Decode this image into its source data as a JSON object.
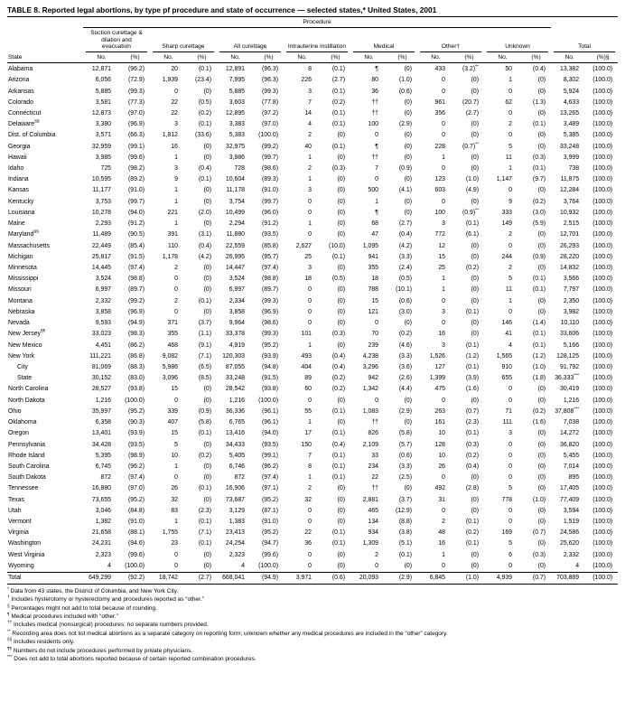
{
  "title": {
    "label": "TABLE 8.",
    "text": "Reported legal abortions, by type pf procedure and state of occurrence — selected states,* United States, 2001"
  },
  "table": {
    "header": {
      "procedure_label": "Procedure",
      "state_label": "State",
      "groups": [
        {
          "name": "Suction curettage & dilation and evacuation",
          "no": "No.",
          "pct": "(%)"
        },
        {
          "name": "Sharp curettage",
          "no": "No.",
          "pct": "(%)"
        },
        {
          "name": "All curettage",
          "no": "No.",
          "pct": "(%)"
        },
        {
          "name": "Intrauterine instillation",
          "no": "No.",
          "pct": "(%)"
        },
        {
          "name": "Medical",
          "no": "No.",
          "pct": "(%)"
        },
        {
          "name": "Other†",
          "no": "No.",
          "pct": "(%)"
        },
        {
          "name": "Unknown",
          "no": "No.",
          "pct": "(%)"
        },
        {
          "name": "Total",
          "no": "No.",
          "pct": "(%)§"
        }
      ]
    },
    "rows": [
      {
        "state": "Alabama",
        "cells": [
          "12,871",
          "(96.2)",
          "20",
          "(0.1)",
          "12,891",
          "(96.3)",
          "8",
          "(0.1)",
          "¶",
          "(0)",
          "433",
          "(3.2)**",
          "50",
          "(0.4)",
          "13,382",
          "(100.0)"
        ]
      },
      {
        "state": "Arizona",
        "cells": [
          "6,056",
          "(72.9)",
          "1,939",
          "(23.4)",
          "7,995",
          "(96.3)",
          "226",
          "(2.7)",
          "80",
          "(1.0)",
          "0",
          "(0)",
          "1",
          "(0)",
          "8,302",
          "(100.0)"
        ]
      },
      {
        "state": "Arkansas",
        "cells": [
          "5,885",
          "(99.3)",
          "0",
          "(0)",
          "5,885",
          "(99.3)",
          "3",
          "(0.1)",
          "36",
          "(0.6)",
          "0",
          "(0)",
          "0",
          "(0)",
          "5,924",
          "(100.0)"
        ]
      },
      {
        "state": "Colorado",
        "cells": [
          "3,581",
          "(77.3)",
          "22",
          "(0.5)",
          "3,603",
          "(77.8)",
          "7",
          "(0.2)",
          "††",
          "(0)",
          "961",
          "(20.7)",
          "62",
          "(1.3)",
          "4,633",
          "(100.0)"
        ]
      },
      {
        "state": "Connecticut",
        "cells": [
          "12,873",
          "(97.0)",
          "22",
          "(0.2)",
          "12,895",
          "(97.2)",
          "14",
          "(0.1)",
          "††",
          "(0)",
          "356",
          "(2.7)",
          "0",
          "(0)",
          "13,265",
          "(100.0)"
        ]
      },
      {
        "state": "Delaware",
        "mark": "§§",
        "cells": [
          "3,380",
          "(96.9)",
          "3",
          "(0.1)",
          "3,383",
          "(97.0)",
          "4",
          "(0.1)",
          "100",
          "(2.9)",
          "0",
          "(0)",
          "2",
          "(0.1)",
          "3,489",
          "(100.0)"
        ]
      },
      {
        "state": "Dist. of Columbia",
        "cells": [
          "3,571",
          "(66.3)",
          "1,812",
          "(33.6)",
          "5,383",
          "(100.0)",
          "2",
          "(0)",
          "0",
          "(0)",
          "0",
          "(0)",
          "0",
          "(0)",
          "5,385",
          "(100.0)"
        ]
      },
      {
        "state": "Georgia",
        "cells": [
          "32,959",
          "(99.1)",
          "16",
          "(0)",
          "32,975",
          "(99.2)",
          "40",
          "(0.1)",
          "¶",
          "(0)",
          "228",
          "(0.7)**",
          "5",
          "(0)",
          "33,248",
          "(100.0)"
        ]
      },
      {
        "state": "Hawaii",
        "cells": [
          "3,985",
          "(99.6)",
          "1",
          "(0)",
          "3,986",
          "(99.7)",
          "1",
          "(0)",
          "††",
          "(0)",
          "1",
          "(0)",
          "11",
          "(0.3)",
          "3,999",
          "(100.0)"
        ]
      },
      {
        "state": "Idaho",
        "cells": [
          "725",
          "(98.2)",
          "3",
          "(0.4)",
          "728",
          "(98.6)",
          "2",
          "(0.3)",
          "7",
          "(0.9)",
          "0",
          "(0)",
          "1",
          "(0.1)",
          "738",
          "(100.0)"
        ]
      },
      {
        "state": "Indiana",
        "cells": [
          "10,595",
          "(89.2)",
          "9",
          "(0.1)",
          "10,604",
          "(89.3)",
          "1",
          "(0)",
          "0",
          "(0)",
          "123",
          "(1.0)",
          "1,147",
          "(9.7)",
          "11,875",
          "(100.0)"
        ]
      },
      {
        "state": "Kansas",
        "cells": [
          "11,177",
          "(91.0)",
          "1",
          "(0)",
          "11,178",
          "(91.0)",
          "3",
          "(0)",
          "500",
          "(4.1)",
          "603",
          "(4.9)",
          "0",
          "(0)",
          "12,284",
          "(100.0)"
        ]
      },
      {
        "state": "Kentucky",
        "cells": [
          "3,753",
          "(99.7)",
          "1",
          "(0)",
          "3,754",
          "(99.7)",
          "0",
          "(0)",
          "1",
          "(0)",
          "0",
          "(0)",
          "9",
          "(0.2)",
          "3,764",
          "(100.0)"
        ]
      },
      {
        "state": "Louisiana",
        "cells": [
          "10,278",
          "(94.0)",
          "221",
          "(2.0)",
          "10,499",
          "(96.0)",
          "0",
          "(0)",
          "¶",
          "(0)",
          "100",
          "(0.9)**",
          "333",
          "(3.0)",
          "10,932",
          "(100.0)"
        ]
      },
      {
        "state": "Maine",
        "cells": [
          "2,293",
          "(91.2)",
          "1",
          "(0)",
          "2,294",
          "(91.2)",
          "1",
          "(0)",
          "68",
          "(2.7)",
          "3",
          "(0.1)",
          "149",
          "(5.9)",
          "2,515",
          "(100.0)"
        ]
      },
      {
        "state": "Maryland",
        "mark": "§§",
        "cells": [
          "11,489",
          "(90.5)",
          "391",
          "(3.1)",
          "11,880",
          "(93.5)",
          "0",
          "(0)",
          "47",
          "(0.4)",
          "772",
          "(6.1)",
          "2",
          "(0)",
          "12,701",
          "(100.0)"
        ]
      },
      {
        "state": "Massachusetts",
        "cells": [
          "22,449",
          "(85.4)",
          "110",
          "(0.4)",
          "22,559",
          "(85.8)",
          "2,627",
          "(10.0)",
          "1,095",
          "(4.2)",
          "12",
          "(0)",
          "0",
          "(0)",
          "26,293",
          "(100.0)"
        ]
      },
      {
        "state": "Michigan",
        "cells": [
          "25,817",
          "(91.5)",
          "1,178",
          "(4.2)",
          "26,995",
          "(95.7)",
          "25",
          "(0.1)",
          "941",
          "(3.3)",
          "15",
          "(0)",
          "244",
          "(0.9)",
          "28,220",
          "(100.0)"
        ]
      },
      {
        "state": "Minnesota",
        "cells": [
          "14,445",
          "(97.4)",
          "2",
          "(0)",
          "14,447",
          "(97.4)",
          "3",
          "(0)",
          "355",
          "(2.4)",
          "25",
          "(0.2)",
          "2",
          "(0)",
          "14,832",
          "(100.0)"
        ]
      },
      {
        "state": "Mississippi",
        "cells": [
          "3,524",
          "(98.8)",
          "0",
          "(0)",
          "3,524",
          "(98.8)",
          "18",
          "(0.5)",
          "18",
          "(0.5)",
          "1",
          "(0)",
          "5",
          "(0.1)",
          "3,566",
          "(100.0)"
        ]
      },
      {
        "state": "Missouri",
        "cells": [
          "6,997",
          "(89.7)",
          "0",
          "(0)",
          "6,997",
          "(89.7)",
          "0",
          "(0)",
          "788",
          "(10.1)",
          "1",
          "(0)",
          "11",
          "(0.1)",
          "7,797",
          "(100.0)"
        ]
      },
      {
        "state": "Montana",
        "cells": [
          "2,332",
          "(99.2)",
          "2",
          "(0.1)",
          "2,334",
          "(99.3)",
          "0",
          "(0)",
          "15",
          "(0.6)",
          "0",
          "(0)",
          "1",
          "(0)",
          "2,350",
          "(100.0)"
        ]
      },
      {
        "state": "Nebraska",
        "cells": [
          "3,858",
          "(96.9)",
          "0",
          "(0)",
          "3,858",
          "(96.9)",
          "0",
          "(0)",
          "121",
          "(3.0)",
          "3",
          "(0.1)",
          "0",
          "(0)",
          "3,982",
          "(100.0)"
        ]
      },
      {
        "state": "Nevada",
        "cells": [
          "9,593",
          "(94.9)",
          "371",
          "(3.7)",
          "9,964",
          "(98.6)",
          "0",
          "(0)",
          "0",
          "(0)",
          "0",
          "(0)",
          "146",
          "(1.4)",
          "10,110",
          "(100.0)"
        ]
      },
      {
        "state": "New Jersey",
        "mark": "¶¶",
        "cells": [
          "33,023",
          "(98.3)",
          "355",
          "(1.1)",
          "33,378",
          "(99.3)",
          "101",
          "(0.3)",
          "70",
          "(0.2)",
          "16",
          "(0)",
          "41",
          "(0.1)",
          "33,606",
          "(100.0)"
        ]
      },
      {
        "state": "New Mexico",
        "cells": [
          "4,451",
          "(86.2)",
          "468",
          "(9.1)",
          "4,919",
          "(95.2)",
          "1",
          "(0)",
          "239",
          "(4.6)",
          "3",
          "(0.1)",
          "4",
          "(0.1)",
          "5,166",
          "(100.0)"
        ]
      },
      {
        "state": "New York",
        "cells": [
          "111,221",
          "(86.8)",
          "9,082",
          "(7.1)",
          "120,303",
          "(93.9)",
          "493",
          "(0.4)",
          "4,238",
          "(3.3)",
          "1,526",
          "(1.2)",
          "1,565",
          "(1.2)",
          "128,125",
          "(100.0)"
        ]
      },
      {
        "state": "City",
        "indent": true,
        "cells": [
          "81,069",
          "(88.3)",
          "5,986",
          "(6.5)",
          "87,055",
          "(94.8)",
          "404",
          "(0.4)",
          "3,296",
          "(3.6)",
          "127",
          "(0.1)",
          "910",
          "(1.0)",
          "91,792",
          "(100.0)"
        ]
      },
      {
        "state": "State",
        "indent": true,
        "cells": [
          "30,152",
          "(83.0)",
          "3,096",
          "(8.5)",
          "33,248",
          "(91.5)",
          "89",
          "(0.2)",
          "942",
          "(2.6)",
          "1,399",
          "(3.9)",
          "655",
          "(1.8)",
          "36,333***",
          "(100.0)"
        ]
      },
      {
        "state": "North Carolina",
        "cells": [
          "28,527",
          "(93.8)",
          "15",
          "(0)",
          "28,542",
          "(93.8)",
          "60",
          "(0.2)",
          "1,342",
          "(4.4)",
          "475",
          "(1.6)",
          "0",
          "(0)",
          "30,419",
          "(100.0)"
        ]
      },
      {
        "state": "North Dakota",
        "cells": [
          "1,216",
          "(100.0)",
          "0",
          "(0)",
          "1,216",
          "(100.0)",
          "0",
          "(0)",
          "0",
          "(0)",
          "0",
          "(0)",
          "0",
          "(0)",
          "1,216",
          "(100.0)"
        ]
      },
      {
        "state": "Ohio",
        "cells": [
          "35,997",
          "(95.2)",
          "339",
          "(0.9)",
          "36,336",
          "(96.1)",
          "55",
          "(0.1)",
          "1,083",
          "(2.9)",
          "263",
          "(0.7)",
          "71",
          "(0.2)",
          "37,808***",
          "(100.0)"
        ]
      },
      {
        "state": "Oklahoma",
        "cells": [
          "6,358",
          "(90.3)",
          "407",
          "(5.8)",
          "6,765",
          "(96.1)",
          "1",
          "(0)",
          "††",
          "(0)",
          "161",
          "(2.3)",
          "111",
          "(1.6)",
          "7,038",
          "(100.0)"
        ]
      },
      {
        "state": "Oregon",
        "cells": [
          "13,401",
          "(93.9)",
          "15",
          "(0.1)",
          "13,416",
          "(94.0)",
          "17",
          "(0.1)",
          "826",
          "(5.8)",
          "10",
          "(0.1)",
          "3",
          "(0)",
          "14,272",
          "(100.0)"
        ]
      },
      {
        "state": "Pennsylvania",
        "cells": [
          "34,428",
          "(93.5)",
          "5",
          "(0)",
          "34,433",
          "(93.5)",
          "150",
          "(0.4)",
          "2,109",
          "(5.7)",
          "128",
          "(0.3)",
          "0",
          "(0)",
          "36,820",
          "(100.0)"
        ]
      },
      {
        "state": "Rhode Island",
        "cells": [
          "5,395",
          "(98.9)",
          "10",
          "(0.2)",
          "5,405",
          "(99.1)",
          "7",
          "(0.1)",
          "33",
          "(0.6)",
          "10",
          "(0.2)",
          "0",
          "(0)",
          "5,455",
          "(100.0)"
        ]
      },
      {
        "state": "South Carolina",
        "cells": [
          "6,745",
          "(96.2)",
          "1",
          "(0)",
          "6,746",
          "(96.2)",
          "8",
          "(0.1)",
          "234",
          "(3.3)",
          "26",
          "(0.4)",
          "0",
          "(0)",
          "7,014",
          "(100.0)"
        ]
      },
      {
        "state": "South Dakota",
        "cells": [
          "872",
          "(97.4)",
          "0",
          "(0)",
          "872",
          "(97.4)",
          "1",
          "(0.1)",
          "22",
          "(2.5)",
          "0",
          "(0)",
          "0",
          "(0)",
          "895",
          "(100.0)"
        ]
      },
      {
        "state": "Tennessee",
        "cells": [
          "16,880",
          "(97.0)",
          "26",
          "(0.1)",
          "16,906",
          "(97.1)",
          "2",
          "(0)",
          "††",
          "(0)",
          "492",
          "(2.8)",
          "5",
          "(0)",
          "17,405",
          "(100.0)"
        ]
      },
      {
        "state": "Texas",
        "cells": [
          "73,655",
          "(95.2)",
          "32",
          "(0)",
          "73,687",
          "(95.2)",
          "32",
          "(0)",
          "2,881",
          "(3.7)",
          "31",
          "(0)",
          "778",
          "(1.0)",
          "77,409",
          "(100.0)"
        ]
      },
      {
        "state": "Utah",
        "cells": [
          "3,046",
          "(84.8)",
          "83",
          "(2.3)",
          "3,129",
          "(87.1)",
          "0",
          "(0)",
          "465",
          "(12.9)",
          "0",
          "(0)",
          "0",
          "(0)",
          "3,594",
          "(100.0)"
        ]
      },
      {
        "state": "Vermont",
        "cells": [
          "1,382",
          "(91.0)",
          "1",
          "(0.1)",
          "1,383",
          "(91.0)",
          "0",
          "(0)",
          "134",
          "(8.8)",
          "2",
          "(0.1)",
          "0",
          "(0)",
          "1,519",
          "(100.0)"
        ]
      },
      {
        "state": "Virginia",
        "cells": [
          "21,658",
          "(88.1)",
          "1,755",
          "(7.1)",
          "23,413",
          "(95.2)",
          "22",
          "(0.1)",
          "934",
          "(3.8)",
          "48",
          "(0.2)",
          "169",
          "(0.7)",
          "24,586",
          "(100.0)"
        ]
      },
      {
        "state": "Washington",
        "cells": [
          "24,231",
          "(94.6)",
          "23",
          "(0.1)",
          "24,254",
          "(94.7)",
          "36",
          "(0.1)",
          "1,309",
          "(5.1)",
          "16",
          "(0.1)",
          "5",
          "(0)",
          "25,620",
          "(100.0)"
        ]
      },
      {
        "state": "West Virginia",
        "cells": [
          "2,323",
          "(99.6)",
          "0",
          "(0)",
          "2,323",
          "(99.6)",
          "0",
          "(0)",
          "2",
          "(0.1)",
          "1",
          "(0)",
          "6",
          "(0.3)",
          "2,332",
          "(100.0)"
        ]
      },
      {
        "state": "Wyoming",
        "cells": [
          "4",
          "(100.0)",
          "0",
          "(0)",
          "4",
          "(100.0)",
          "0",
          "(0)",
          "0",
          "(0)",
          "0",
          "(0)",
          "0",
          "(0)",
          "4",
          "(100.0)"
        ]
      }
    ],
    "total_row": {
      "state": "Total",
      "cells": [
        "649,299",
        "(92.2)",
        "18,742",
        "(2.7)",
        "668,041",
        "(94.9)",
        "3,971",
        "(0.6)",
        "20,093",
        "(2.9)",
        "6,845",
        "(1.0)",
        "4,939",
        "(0.7)",
        "703,889",
        "(100.0)"
      ]
    }
  },
  "footnotes": [
    {
      "sym": "*",
      "text": "Data from 43 states, the District of Columbia, and New York City."
    },
    {
      "sym": "†",
      "text": "Includes hysterotomy or hysterectomy and procedures reported as “other.”"
    },
    {
      "sym": "§",
      "text": "Percentages might not add to total because of rounding."
    },
    {
      "sym": "¶",
      "text": "Medical procedures included with “other.”"
    },
    {
      "sym": "††",
      "text": "Includes medical (nonsurgical) procedures; no separate numbers provided."
    },
    {
      "sym": "**",
      "text": "Recording area does not list medical abortions as a separate category on reporting form; unknown whether any medical procedures are included in the “other” category."
    },
    {
      "sym": "§§",
      "text": "Includes residents only."
    },
    {
      "sym": "¶¶",
      "text": "Numbers do not include procedures performed by private physicians."
    },
    {
      "sym": "***",
      "text": "Does not add to total abortions reported because of certain reported combination procedures."
    }
  ]
}
